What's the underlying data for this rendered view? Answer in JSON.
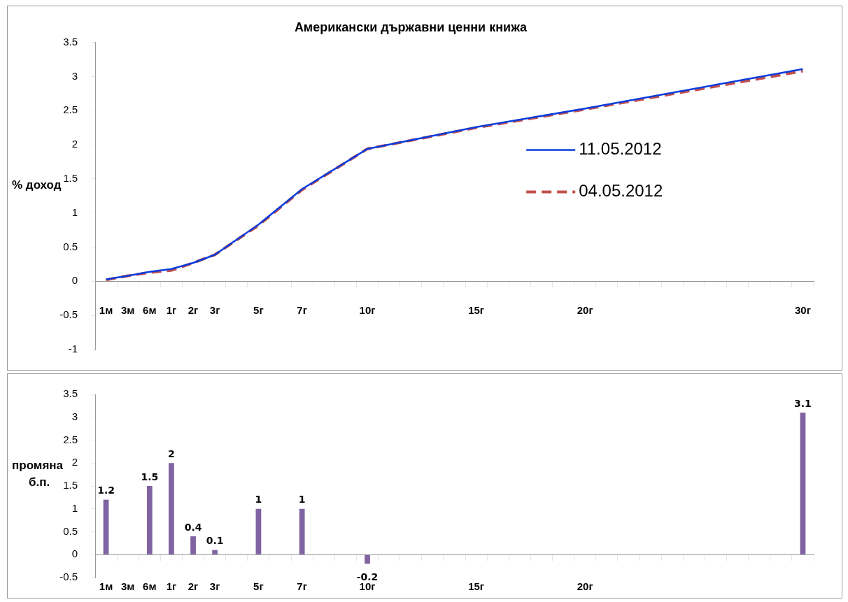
{
  "chart_data": [
    {
      "type": "line",
      "title": "Американски държавни ценни книжа",
      "ylabel": "% доход",
      "categories": [
        "1м",
        "3м",
        "6м",
        "1г",
        "2г",
        "3г",
        null,
        "5г",
        null,
        "7г",
        null,
        null,
        "10г",
        null,
        null,
        null,
        null,
        "15г",
        null,
        null,
        null,
        null,
        "20г",
        null,
        null,
        null,
        null,
        null,
        null,
        null,
        null,
        null,
        "30г"
      ],
      "series": [
        {
          "name": "11.05.2012",
          "color": "#0a3cdc",
          "line_style": "solid",
          "values": [
            0.03,
            0.08,
            0.14,
            0.18,
            0.27,
            0.39,
            null,
            0.83,
            null,
            1.35,
            null,
            null,
            1.94,
            null,
            null,
            null,
            null,
            2.26,
            null,
            null,
            null,
            null,
            2.53,
            null,
            null,
            null,
            null,
            null,
            null,
            null,
            null,
            null,
            3.11
          ]
        },
        {
          "name": "04.05.2012",
          "color": "#c0504d",
          "line_style": "dashed",
          "values": [
            0.02,
            0.08,
            0.13,
            0.16,
            0.27,
            0.39,
            null,
            0.82,
            null,
            1.34,
            null,
            null,
            1.94,
            null,
            null,
            null,
            null,
            2.25,
            null,
            null,
            null,
            null,
            2.52,
            null,
            null,
            null,
            null,
            null,
            null,
            null,
            null,
            null,
            3.08
          ]
        }
      ],
      "ylim": [
        -1,
        3.5
      ],
      "yticks": [
        -1,
        -0.5,
        0,
        0.5,
        1,
        1.5,
        2,
        2.5,
        3,
        3.5
      ],
      "grid": false,
      "legend": "right",
      "marker": "none"
    },
    {
      "type": "bar",
      "ylabel": "промяна б.п.",
      "categories": [
        "1м",
        "3м",
        "6м",
        "1г",
        "2г",
        "3г",
        null,
        "5г",
        null,
        "7г",
        null,
        null,
        "10г",
        null,
        null,
        null,
        null,
        "15г",
        null,
        null,
        null,
        null,
        "20г",
        null,
        null,
        null,
        null,
        null,
        null,
        null,
        null,
        null,
        null
      ],
      "values": [
        1.2,
        null,
        1.5,
        2,
        0.4,
        0.1,
        null,
        1,
        null,
        1,
        null,
        null,
        -0.2,
        null,
        null,
        null,
        null,
        null,
        null,
        null,
        null,
        null,
        null,
        null,
        null,
        null,
        null,
        null,
        null,
        null,
        null,
        null,
        3.1
      ],
      "color": "#8064a2",
      "ylim": [
        -0.5,
        3.5
      ],
      "yticks": [
        -0.5,
        0,
        0.5,
        1,
        1.5,
        2,
        2.5,
        3,
        3.5
      ],
      "grid": false,
      "legend": false,
      "data_labels": true
    }
  ]
}
